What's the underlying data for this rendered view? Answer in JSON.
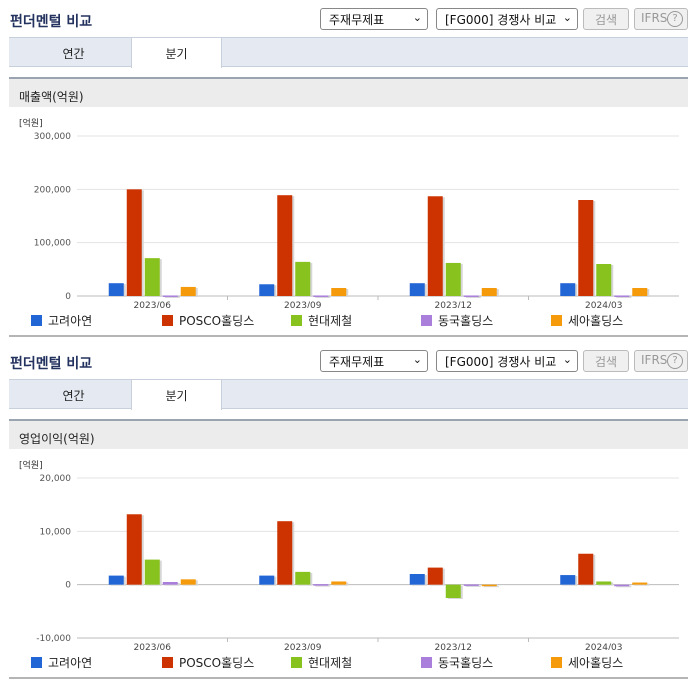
{
  "sections": [
    {
      "title": "펀더멘털 비교",
      "select1": "주재무제표",
      "select2": "[FG000] 경쟁사 비교",
      "search_label": "검색",
      "ifrs_label": "IFRS",
      "help_icon": "question-circle-icon",
      "tabs": [
        {
          "label": "연간"
        },
        {
          "label": "분기",
          "active": true
        }
      ],
      "metric_title": "매출액(억원)"
    },
    {
      "title": "펀더멘털 비교",
      "select1": "주재무제표",
      "select2": "[FG000] 경쟁사 비교",
      "search_label": "검색",
      "ifrs_label": "IFRS",
      "help_icon": "question-circle-icon",
      "tabs": [
        {
          "label": "연간"
        },
        {
          "label": "분기",
          "active": true
        }
      ],
      "metric_title": "영업이익(억원)"
    }
  ],
  "series_colors": [
    "#2266d6",
    "#cc3300",
    "#88c21f",
    "#a97fdb",
    "#f59b0b"
  ],
  "chart_data": [
    {
      "type": "bar",
      "unit_label": "[억원]",
      "categories": [
        "2023/06",
        "2023/09",
        "2023/12",
        "2024/03"
      ],
      "ylim": [
        0,
        300000
      ],
      "yticks": [
        0,
        100000,
        200000,
        300000
      ],
      "ytick_labels": [
        "0",
        "100,000",
        "200,000",
        "300,000"
      ],
      "series": [
        {
          "name": "고려아연",
          "values": [
            24000,
            22000,
            24000,
            24000
          ]
        },
        {
          "name": "POSCO홀딩스",
          "values": [
            200000,
            189000,
            187000,
            180000
          ]
        },
        {
          "name": "현대제철",
          "values": [
            71000,
            64000,
            62000,
            60000
          ]
        },
        {
          "name": "동국홀딩스",
          "values": [
            1000,
            1000,
            1000,
            1000
          ]
        },
        {
          "name": "세아홀딩스",
          "values": [
            17000,
            15000,
            15000,
            15000
          ]
        }
      ],
      "grid": true,
      "legend": "bottom"
    },
    {
      "type": "bar",
      "unit_label": "[억원]",
      "categories": [
        "2023/06",
        "2023/09",
        "2023/12",
        "2024/03"
      ],
      "ylim": [
        -10000,
        20000
      ],
      "yticks": [
        -10000,
        0,
        10000,
        20000
      ],
      "ytick_labels": [
        "-10,000",
        "0",
        "10,000",
        "20,000"
      ],
      "series": [
        {
          "name": "고려아연",
          "values": [
            1700,
            1700,
            2000,
            1800
          ]
        },
        {
          "name": "POSCO홀딩스",
          "values": [
            13200,
            11900,
            3200,
            5800
          ]
        },
        {
          "name": "현대제철",
          "values": [
            4700,
            2400,
            -2500,
            600
          ]
        },
        {
          "name": "동국홀딩스",
          "values": [
            500,
            100,
            50,
            -300
          ]
        },
        {
          "name": "세아홀딩스",
          "values": [
            1000,
            600,
            0,
            400
          ]
        }
      ],
      "grid": true,
      "legend": "bottom"
    }
  ]
}
